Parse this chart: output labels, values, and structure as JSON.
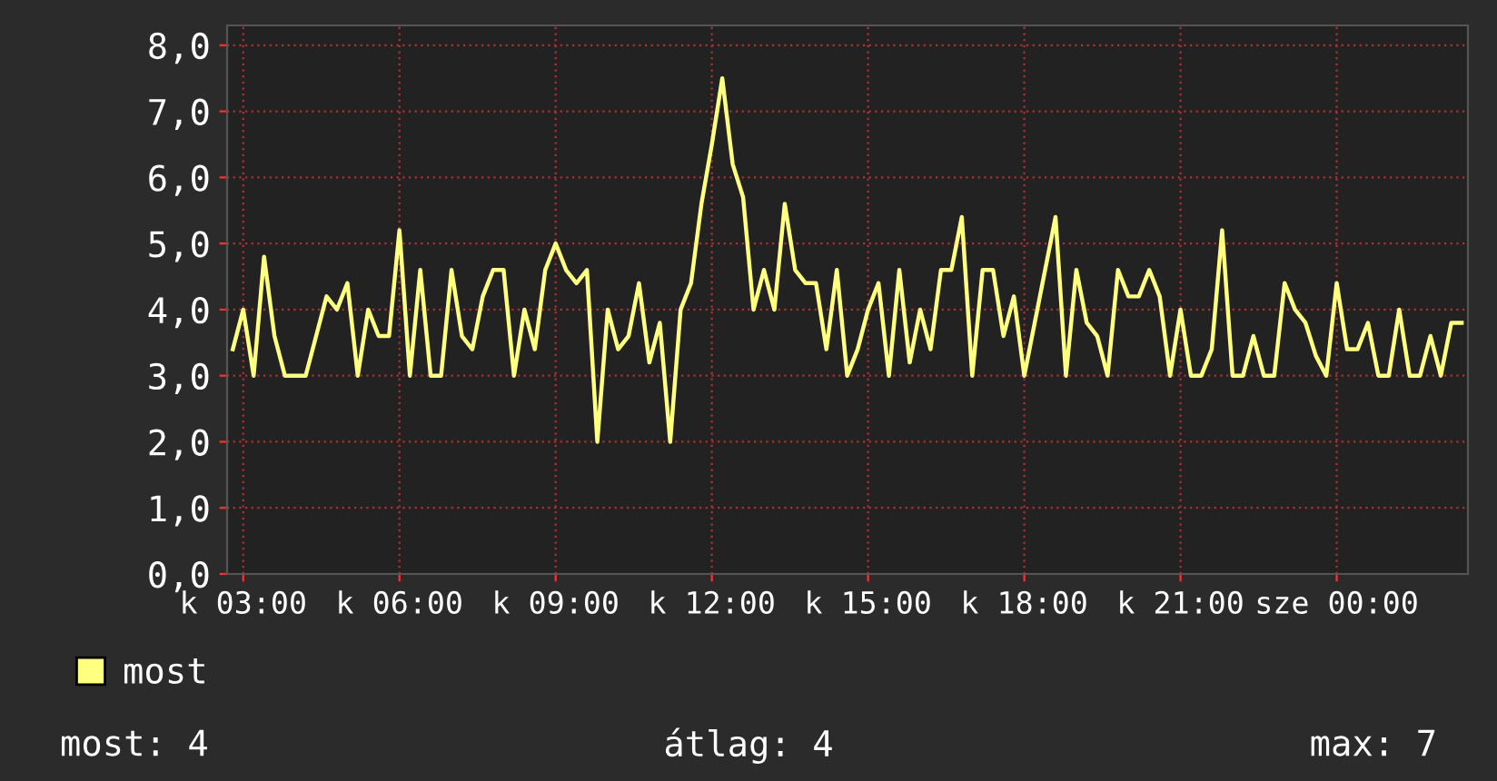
{
  "chart_data": {
    "type": "line",
    "categories": [
      null,
      "k 03:00",
      null,
      null,
      null,
      null,
      null,
      null,
      null,
      null,
      null,
      null,
      null,
      null,
      null,
      null,
      "k 06:00",
      null,
      null,
      null,
      null,
      null,
      null,
      null,
      null,
      null,
      null,
      null,
      null,
      null,
      null,
      "k 09:00",
      null,
      null,
      null,
      null,
      null,
      null,
      null,
      null,
      null,
      null,
      null,
      null,
      null,
      null,
      "k 12:00",
      null,
      null,
      null,
      null,
      null,
      null,
      null,
      null,
      null,
      null,
      null,
      null,
      null,
      null,
      "k 15:00",
      null,
      null,
      null,
      null,
      null,
      null,
      null,
      null,
      null,
      null,
      null,
      null,
      null,
      null,
      "k 18:00",
      null,
      null,
      null,
      null,
      null,
      null,
      null,
      null,
      null,
      null,
      null,
      null,
      null,
      null,
      "k 21:00",
      null,
      null,
      null,
      null,
      null,
      null,
      null,
      null,
      null,
      null,
      null,
      null,
      null,
      null,
      "sze 00:00",
      null,
      null,
      null,
      null,
      null,
      null,
      null,
      null,
      null,
      null,
      null,
      null
    ],
    "series": [
      {
        "name": "most",
        "color": "#ffff80",
        "values": [
          3.4,
          4.0,
          3.0,
          4.8,
          3.6,
          3.0,
          3.0,
          3.0,
          3.6,
          4.2,
          4.0,
          4.4,
          3.0,
          4.0,
          3.6,
          3.6,
          5.2,
          3.0,
          4.6,
          3.0,
          3.0,
          4.6,
          3.6,
          3.4,
          4.2,
          4.6,
          4.6,
          3.0,
          4.0,
          3.4,
          4.6,
          5.0,
          4.6,
          4.4,
          4.6,
          2.0,
          4.0,
          3.4,
          3.6,
          4.4,
          3.2,
          3.8,
          2.0,
          4.0,
          4.4,
          5.6,
          6.5,
          7.5,
          6.2,
          5.7,
          4.0,
          4.6,
          4.0,
          5.6,
          4.6,
          4.4,
          4.4,
          3.4,
          4.6,
          3.0,
          3.4,
          4.0,
          4.4,
          3.0,
          4.6,
          3.2,
          4.0,
          3.4,
          4.6,
          4.6,
          5.4,
          3.0,
          4.6,
          4.6,
          3.6,
          4.2,
          3.0,
          3.8,
          4.6,
          5.4,
          3.0,
          4.6,
          3.8,
          3.6,
          3.0,
          4.6,
          4.2,
          4.2,
          4.6,
          4.2,
          3.0,
          4.0,
          3.0,
          3.0,
          3.4,
          5.2,
          3.0,
          3.0,
          3.6,
          3.0,
          3.0,
          4.4,
          4.0,
          3.8,
          3.3,
          3.0,
          4.4,
          3.4,
          3.4,
          3.8,
          3.0,
          3.0,
          4.0,
          3.0,
          3.0,
          3.6,
          3.0,
          3.8,
          3.8
        ]
      }
    ],
    "ylim": [
      0,
      8.3
    ],
    "yticks": [
      {
        "value": 0,
        "label": "0,0"
      },
      {
        "value": 1,
        "label": "1,0"
      },
      {
        "value": 2,
        "label": "2,0"
      },
      {
        "value": 3,
        "label": "3,0"
      },
      {
        "value": 4,
        "label": "4,0"
      },
      {
        "value": 5,
        "label": "5,0"
      },
      {
        "value": 6,
        "label": "6,0"
      },
      {
        "value": 7,
        "label": "7,0"
      },
      {
        "value": 8,
        "label": "8,0"
      }
    ],
    "grid": true,
    "legend": "bottom left",
    "annotations": [
      "most: 4",
      "átlag: 4",
      "max: 7"
    ]
  }
}
